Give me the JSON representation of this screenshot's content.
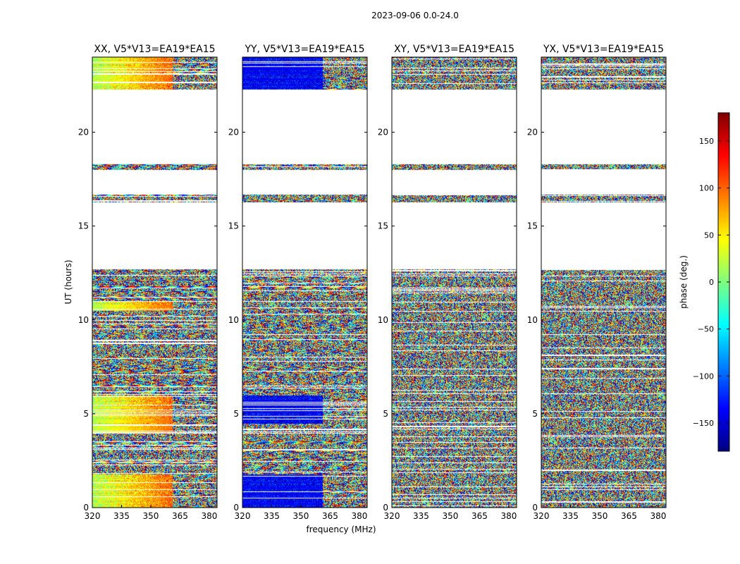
{
  "suptitle": "2023-09-06 0.0-24.0",
  "chart_data": {
    "type": "heatmap",
    "title": "2023-09-06 0.0-24.0",
    "xlabel": "frequency (MHz)",
    "ylabel": "UT (hours)",
    "xlim": [
      320,
      384
    ],
    "ylim": [
      0,
      24
    ],
    "xticks": [
      320,
      335,
      350,
      365,
      380
    ],
    "yticks": [
      0,
      5,
      10,
      15,
      20
    ],
    "panels": [
      {
        "id": "xx",
        "title": "XX, V5*V13=EA19*EA15",
        "pattern": "XX"
      },
      {
        "id": "yy",
        "title": "YY, V5*V13=EA19*EA15",
        "pattern": "YY"
      },
      {
        "id": "xy",
        "title": "XY, V5*V13=EA19*EA15",
        "pattern": "XY"
      },
      {
        "id": "yx",
        "title": "YX, V5*V13=EA19*EA15",
        "pattern": "YX"
      }
    ],
    "time_segments_hours": [
      [
        0.0,
        12.7
      ],
      [
        16.3,
        16.7
      ],
      [
        18.0,
        18.3
      ],
      [
        22.3,
        24.0
      ]
    ],
    "colorbar": {
      "label": "phase (deg.)",
      "range": [
        -180,
        180
      ],
      "ticks": [
        150,
        100,
        50,
        0,
        -50,
        -100,
        -150
      ],
      "tick_labels": [
        "150",
        "100",
        "50",
        "0",
        "−50",
        "−100",
        "−150"
      ],
      "colormap": [
        "#00007f",
        "#0000ff",
        "#007fff",
        "#00ffff",
        "#7fff7f",
        "#ffff00",
        "#ff7f00",
        "#ff0000",
        "#7f0000"
      ]
    }
  }
}
